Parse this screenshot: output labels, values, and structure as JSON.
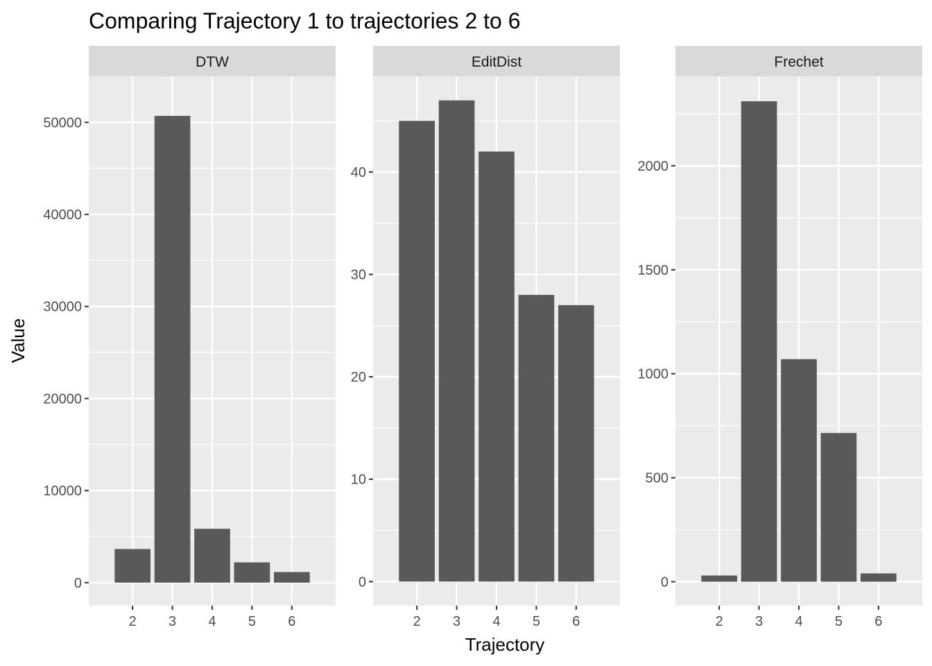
{
  "chart_data": {
    "type": "bar",
    "title": "Comparing Trajectory 1 to trajectories 2 to 6",
    "xlabel": "Trajectory",
    "ylabel": "Value",
    "categories": [
      "2",
      "3",
      "4",
      "5",
      "6"
    ],
    "grid": true,
    "legend": "none",
    "bar_color": "#595959",
    "panel_background": "#ebebeb",
    "strip_background": "#d9d9d9",
    "panels": [
      {
        "strip": "DTW",
        "values": [
          3650,
          50700,
          5850,
          2200,
          1150
        ],
        "ylim": [
          -2500,
          55000
        ],
        "yticks": [
          "0",
          "10000",
          "20000",
          "30000",
          "40000",
          "50000"
        ],
        "ytick_values": [
          0,
          10000,
          20000,
          30000,
          40000,
          50000
        ]
      },
      {
        "strip": "EditDist",
        "values": [
          45,
          47,
          42,
          28,
          27
        ],
        "ylim": [
          -2.35,
          49.35
        ],
        "yticks": [
          "0",
          "10",
          "20",
          "30",
          "40"
        ],
        "ytick_values": [
          0,
          10,
          20,
          30,
          40
        ]
      },
      {
        "strip": "Frechet",
        "values": [
          30,
          2310,
          1070,
          715,
          40
        ],
        "ylim": [
          -115,
          2430
        ],
        "yticks": [
          "0",
          "500",
          "1000",
          "1500",
          "2000"
        ],
        "ytick_values": [
          0,
          500,
          1000,
          1500,
          2000
        ]
      }
    ]
  }
}
